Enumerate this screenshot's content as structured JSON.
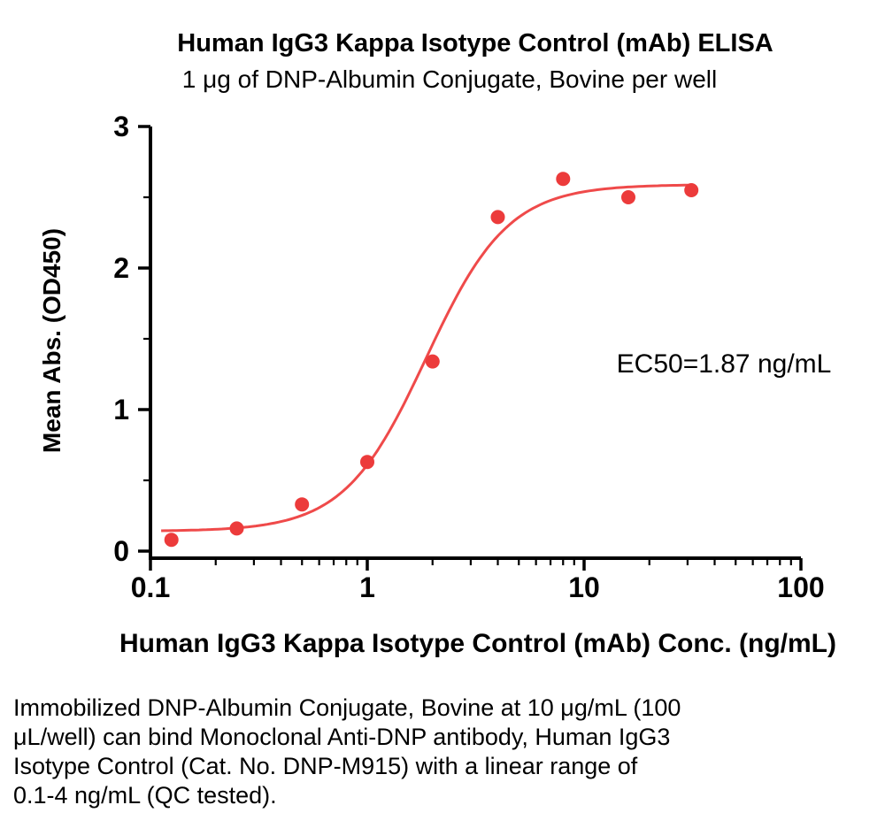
{
  "chart_data": {
    "type": "scatter",
    "title": "Human IgG3 Kappa Isotype Control (mAb) ELISA",
    "subtitle": "1 μg of DNP-Albumin Conjugate, Bovine per well",
    "xlabel": "Human IgG3 Kappa Isotype Control (mAb) Conc. (ng/mL)",
    "ylabel": "Mean Abs. (OD450)",
    "annotation": "EC50=1.87 ng/mL",
    "x_scale": "log",
    "x": [
      0.125,
      0.25,
      0.5,
      1,
      2,
      4,
      8,
      16,
      31.25
    ],
    "y": [
      0.08,
      0.16,
      0.33,
      0.63,
      1.34,
      2.36,
      2.63,
      2.5,
      2.55
    ],
    "fit": {
      "model": "4PL",
      "bottom": 0.14,
      "top": 2.59,
      "ec50": 1.87,
      "hill": 2.3
    },
    "curve_range": [
      0.112,
      31.5
    ],
    "xlim": [
      0.1,
      100
    ],
    "ylim": [
      0,
      3
    ],
    "x_ticks": [
      0.1,
      1,
      10,
      100
    ],
    "x_tick_labels": [
      "0.1",
      "1",
      "10",
      "100"
    ],
    "y_ticks": [
      0,
      1,
      2,
      3
    ],
    "y_tick_labels": [
      "0",
      "1",
      "2",
      "3"
    ],
    "y_minor_step": 0.5,
    "grid": "off",
    "legend": "none",
    "point_color": "#EC3B3B",
    "line_color": "#EF4A4A",
    "axis_color": "#000000"
  },
  "caption": {
    "lines": [
      "Immobilized DNP-Albumin Conjugate, Bovine at 10 μg/mL (100",
      "μL/well) can bind Monoclonal Anti-DNP antibody, Human IgG3",
      "Isotype Control (Cat. No. DNP-M915) with a linear range of",
      "0.1-4 ng/mL (QC tested)."
    ]
  }
}
